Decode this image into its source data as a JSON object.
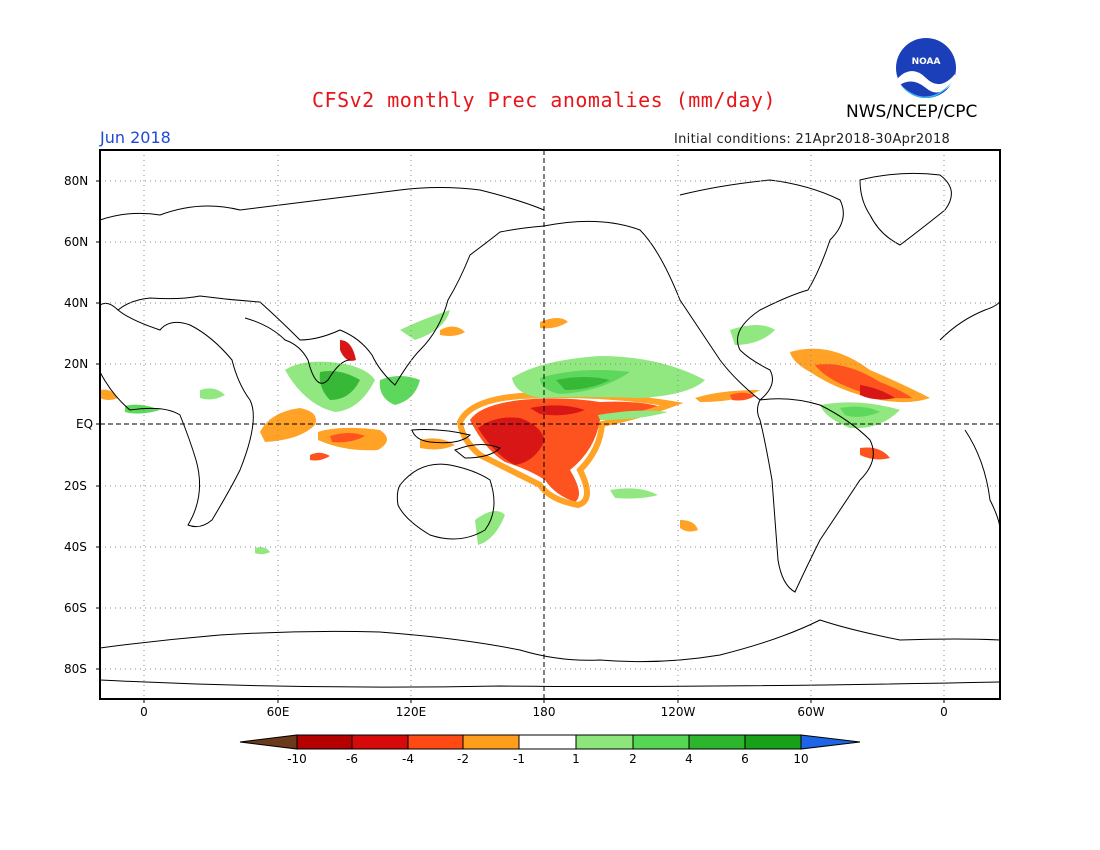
{
  "header": {
    "title": "CFSv2 monthly Prec anomalies (mm/day)",
    "agency": "NWS/NCEP/CPC",
    "logo_text": "NOAA",
    "month": "Jun 2018",
    "initial_conditions": "Initial conditions: 21Apr2018-30Apr2018"
  },
  "axes": {
    "lat_labels": [
      "80N",
      "60N",
      "40N",
      "20N",
      "EQ",
      "20S",
      "40S",
      "60S",
      "80S"
    ],
    "lat_values": [
      80,
      60,
      40,
      20,
      0,
      -20,
      -40,
      -60,
      -80
    ],
    "lon_labels": [
      "0",
      "60E",
      "120E",
      "180",
      "120W",
      "60W",
      "0"
    ],
    "lon_values": [
      0,
      60,
      120,
      180,
      240,
      300,
      360
    ]
  },
  "colorbar": {
    "labels": [
      "-10",
      "-6",
      "-4",
      "-2",
      "-1",
      "1",
      "2",
      "4",
      "6",
      "10"
    ],
    "colors": [
      "#6b3a1a",
      "#b50000",
      "#d60a0a",
      "#ff4a14",
      "#ff9e1a",
      "#ffffff",
      "#8ce67a",
      "#55d655",
      "#2db52d",
      "#19a019",
      "#1e64e6"
    ]
  },
  "colors": {
    "wet_light": "#8ce67a",
    "wet_mid": "#55d655",
    "wet_strong": "#2db52d",
    "dry_light": "#ff9e1a",
    "dry_mid": "#ff4a14",
    "dry_strong": "#d60a0a"
  }
}
